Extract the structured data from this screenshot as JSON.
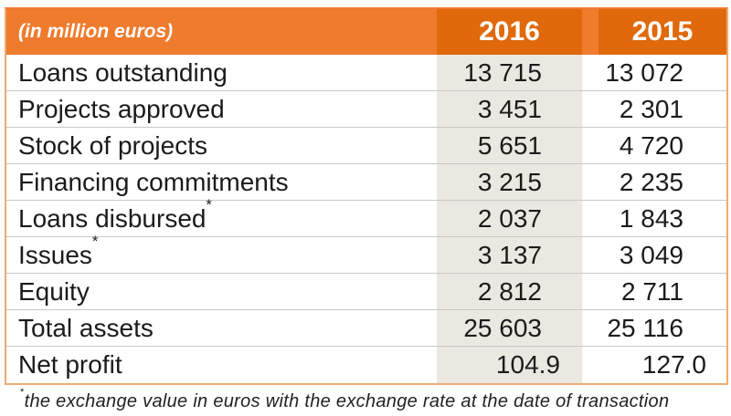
{
  "chart_data": {
    "type": "table",
    "header": {
      "caption": "(in million euros)",
      "col_2016": "2016",
      "col_2015": "2015"
    },
    "rows": [
      {
        "label": "Loans outstanding",
        "suffix": "",
        "y2016": "13 715",
        "y2015": "13 072"
      },
      {
        "label": "Projects approved",
        "suffix": "",
        "y2016": "3 451",
        "y2015": "2 301"
      },
      {
        "label": "Stock of projects",
        "suffix": "",
        "y2016": "5 651",
        "y2015": "4 720"
      },
      {
        "label": "Financing commitments",
        "suffix": "",
        "y2016": "3 215",
        "y2015": "2 235"
      },
      {
        "label": "Loans disbursed",
        "suffix": "*",
        "y2016": "2 037",
        "y2015": "1 843"
      },
      {
        "label": "Issues",
        "suffix": "*",
        "y2016": "3 137",
        "y2015": "3 049"
      },
      {
        "label": "Equity",
        "suffix": "",
        "y2016": "2 812",
        "y2015": "2 711"
      },
      {
        "label": "Total assets",
        "suffix": "",
        "y2016": "25 603",
        "y2015": "25 116"
      },
      {
        "label": "Net profit",
        "suffix": "",
        "y2016": "104.9",
        "y2015": "127.0"
      }
    ],
    "footnote": {
      "marker": "*",
      "text": "the exchange value in euros with the exchange rate at the date of transaction"
    }
  },
  "colors": {
    "orange": "#ef7b2d",
    "dark_orange": "#e0690b",
    "beige": "#eae8e0",
    "border": "#edab74",
    "separator": "#c8c8c8"
  }
}
